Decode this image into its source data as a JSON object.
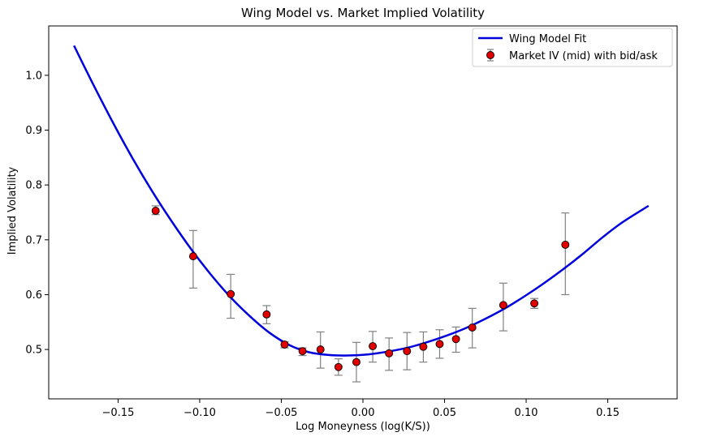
{
  "chart_data": {
    "type": "scatter",
    "title": "Wing Model vs. Market Implied Volatility",
    "xlabel": "Log Moneyness (log(K/S))",
    "ylabel": "Implied Volatility",
    "xlim": [
      -0.1925,
      0.1925
    ],
    "ylim": [
      0.41,
      1.09
    ],
    "xticks": [
      -0.15,
      -0.1,
      -0.05,
      0.0,
      0.05,
      0.1,
      0.15
    ],
    "xtick_labels": [
      "−0.15",
      "−0.10",
      "−0.05",
      "0.00",
      "0.05",
      "0.10",
      "0.15"
    ],
    "yticks": [
      0.5,
      0.6,
      0.7,
      0.8,
      0.9,
      1.0
    ],
    "ytick_labels": [
      "0.5",
      "0.6",
      "0.7",
      "0.8",
      "0.9",
      "1.0"
    ],
    "legend_position": "top-right",
    "series": [
      {
        "name": "Wing Model Fit",
        "kind": "line",
        "color": "#0000dd",
        "x": [
          -0.177,
          -0.165,
          -0.153,
          -0.141,
          -0.129,
          -0.117,
          -0.105,
          -0.093,
          -0.081,
          -0.069,
          -0.057,
          -0.045,
          -0.033,
          -0.021,
          -0.009,
          0.003,
          0.015,
          0.027,
          0.039,
          0.051,
          0.063,
          0.075,
          0.087,
          0.099,
          0.111,
          0.123,
          0.135,
          0.147,
          0.159,
          0.175
        ],
        "y": [
          1.054,
          0.982,
          0.913,
          0.848,
          0.788,
          0.733,
          0.682,
          0.636,
          0.595,
          0.56,
          0.53,
          0.508,
          0.495,
          0.49,
          0.489,
          0.491,
          0.496,
          0.503,
          0.513,
          0.525,
          0.539,
          0.556,
          0.575,
          0.597,
          0.621,
          0.647,
          0.675,
          0.705,
          0.732,
          0.762
        ]
      },
      {
        "name": "Market IV (mid) with bid/ask",
        "kind": "errorbar",
        "color": "#e00000",
        "edge_color": "#000000",
        "errorbar_color": "#808080",
        "points": [
          {
            "x": -0.127,
            "y": 0.753,
            "low": 0.746,
            "high": 0.762
          },
          {
            "x": -0.104,
            "y": 0.67,
            "low": 0.612,
            "high": 0.717
          },
          {
            "x": -0.081,
            "y": 0.601,
            "low": 0.557,
            "high": 0.637
          },
          {
            "x": -0.059,
            "y": 0.564,
            "low": 0.547,
            "high": 0.58
          },
          {
            "x": -0.048,
            "y": 0.509,
            "low": 0.503,
            "high": 0.514
          },
          {
            "x": -0.037,
            "y": 0.497,
            "low": 0.489,
            "high": 0.503
          },
          {
            "x": -0.026,
            "y": 0.5,
            "low": 0.466,
            "high": 0.532
          },
          {
            "x": -0.015,
            "y": 0.468,
            "low": 0.453,
            "high": 0.483
          },
          {
            "x": -0.004,
            "y": 0.477,
            "low": 0.441,
            "high": 0.513
          },
          {
            "x": 0.006,
            "y": 0.506,
            "low": 0.477,
            "high": 0.533
          },
          {
            "x": 0.016,
            "y": 0.493,
            "low": 0.462,
            "high": 0.521
          },
          {
            "x": 0.027,
            "y": 0.497,
            "low": 0.463,
            "high": 0.531
          },
          {
            "x": 0.037,
            "y": 0.505,
            "low": 0.477,
            "high": 0.532
          },
          {
            "x": 0.047,
            "y": 0.51,
            "low": 0.484,
            "high": 0.536
          },
          {
            "x": 0.057,
            "y": 0.519,
            "low": 0.495,
            "high": 0.541
          },
          {
            "x": 0.067,
            "y": 0.54,
            "low": 0.503,
            "high": 0.575
          },
          {
            "x": 0.086,
            "y": 0.581,
            "low": 0.534,
            "high": 0.621
          },
          {
            "x": 0.105,
            "y": 0.584,
            "low": 0.575,
            "high": 0.593
          },
          {
            "x": 0.124,
            "y": 0.691,
            "low": 0.6,
            "high": 0.749
          }
        ]
      }
    ]
  }
}
